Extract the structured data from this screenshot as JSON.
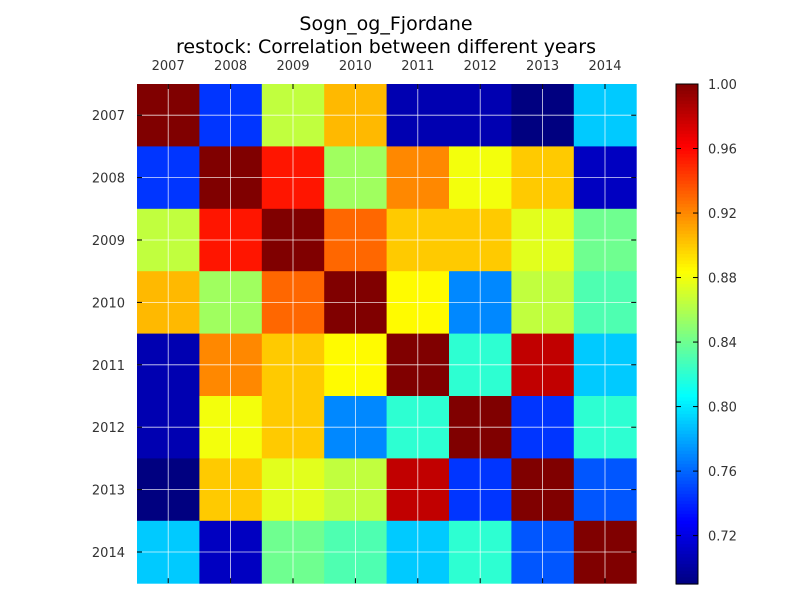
{
  "chart_data": {
    "type": "heatmap",
    "title": "Sogn_og_Fjordane",
    "subtitle": "restock: Correlation between different years",
    "x_categories": [
      "2007",
      "2008",
      "2009",
      "2010",
      "2011",
      "2012",
      "2013",
      "2014"
    ],
    "y_categories": [
      "2007",
      "2008",
      "2009",
      "2010",
      "2011",
      "2012",
      "2013",
      "2014"
    ],
    "values": [
      [
        1.0,
        0.745,
        0.865,
        0.905,
        0.705,
        0.705,
        0.69,
        0.79
      ],
      [
        0.745,
        1.0,
        0.955,
        0.855,
        0.92,
        0.88,
        0.9,
        0.71
      ],
      [
        0.865,
        0.955,
        1.0,
        0.93,
        0.9,
        0.9,
        0.875,
        0.84
      ],
      [
        0.905,
        0.855,
        0.93,
        1.0,
        0.885,
        0.77,
        0.865,
        0.83
      ],
      [
        0.705,
        0.92,
        0.9,
        0.885,
        1.0,
        0.82,
        0.98,
        0.79
      ],
      [
        0.705,
        0.88,
        0.9,
        0.77,
        0.82,
        1.0,
        0.745,
        0.82
      ],
      [
        0.69,
        0.9,
        0.875,
        0.865,
        0.98,
        0.745,
        1.0,
        0.755
      ],
      [
        0.79,
        0.71,
        0.84,
        0.83,
        0.79,
        0.82,
        0.755,
        1.0
      ]
    ],
    "colorbar": {
      "min": 0.69,
      "max": 1.0,
      "ticks": [
        0.72,
        0.76,
        0.8,
        0.84,
        0.88,
        0.92,
        0.96,
        1.0
      ],
      "tick_labels": [
        "0.72",
        "0.76",
        "0.80",
        "0.84",
        "0.88",
        "0.92",
        "0.96",
        "1.00"
      ],
      "colormap": "jet"
    },
    "grid": true,
    "x_ticks_position": "top"
  }
}
